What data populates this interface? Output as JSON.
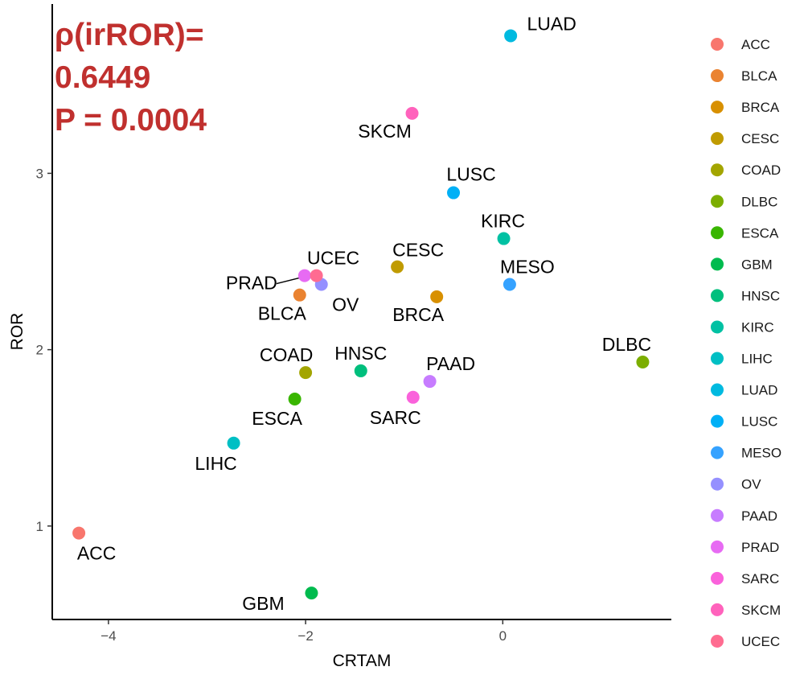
{
  "chart_data": {
    "type": "scatter",
    "title": "",
    "xlabel": "CRTAM",
    "ylabel": "ROR",
    "xlim": [
      -4.57,
      1.71
    ],
    "ylim": [
      0.47,
      3.96
    ],
    "xticks": [
      -4,
      -2,
      0
    ],
    "yticks": [
      1,
      2,
      3
    ],
    "xtick_labels": [
      "−4",
      "−2",
      "0"
    ],
    "ytick_labels": [
      "1",
      "2",
      "3"
    ],
    "grid": false,
    "legend_position": "right",
    "annotation": {
      "line1": "ρ(irROR)=",
      "line2": "0.6449",
      "line3": "P = 0.0004",
      "color": "#C0302E"
    },
    "points": [
      {
        "name": "ACC",
        "x": -4.3,
        "y": 0.96,
        "color": "#F8766D"
      },
      {
        "name": "BLCA",
        "x": -2.06,
        "y": 2.31,
        "color": "#EA8331"
      },
      {
        "name": "BRCA",
        "x": -0.67,
        "y": 2.3,
        "color": "#D89000"
      },
      {
        "name": "CESC",
        "x": -1.07,
        "y": 2.47,
        "color": "#C09B00"
      },
      {
        "name": "COAD",
        "x": -2.0,
        "y": 1.87,
        "color": "#A3A500"
      },
      {
        "name": "DLBC",
        "x": 1.42,
        "y": 1.93,
        "color": "#7CAE00"
      },
      {
        "name": "ESCA",
        "x": -2.11,
        "y": 1.72,
        "color": "#39B600"
      },
      {
        "name": "GBM",
        "x": -1.94,
        "y": 0.62,
        "color": "#00BB4E"
      },
      {
        "name": "HNSC",
        "x": -1.44,
        "y": 1.88,
        "color": "#00BF7D"
      },
      {
        "name": "KIRC",
        "x": 0.01,
        "y": 2.63,
        "color": "#00C1A3"
      },
      {
        "name": "LIHC",
        "x": -2.73,
        "y": 1.47,
        "color": "#00BFC4"
      },
      {
        "name": "LUAD",
        "x": 0.08,
        "y": 3.78,
        "color": "#00BAE0"
      },
      {
        "name": "LUSC",
        "x": -0.5,
        "y": 2.89,
        "color": "#00B0F6"
      },
      {
        "name": "MESO",
        "x": 0.07,
        "y": 2.37,
        "color": "#35A2FF"
      },
      {
        "name": "OV",
        "x": -1.84,
        "y": 2.37,
        "color": "#9590FF"
      },
      {
        "name": "PAAD",
        "x": -0.74,
        "y": 1.82,
        "color": "#C77CFF"
      },
      {
        "name": "PRAD",
        "x": -2.01,
        "y": 2.42,
        "color": "#E76BF3"
      },
      {
        "name": "SARC",
        "x": -0.91,
        "y": 1.73,
        "color": "#FA62DB"
      },
      {
        "name": "SKCM",
        "x": -0.92,
        "y": 3.34,
        "color": "#FF62BC"
      },
      {
        "name": "UCEC",
        "x": -1.89,
        "y": 2.42,
        "color": "#FF6C91"
      }
    ]
  }
}
